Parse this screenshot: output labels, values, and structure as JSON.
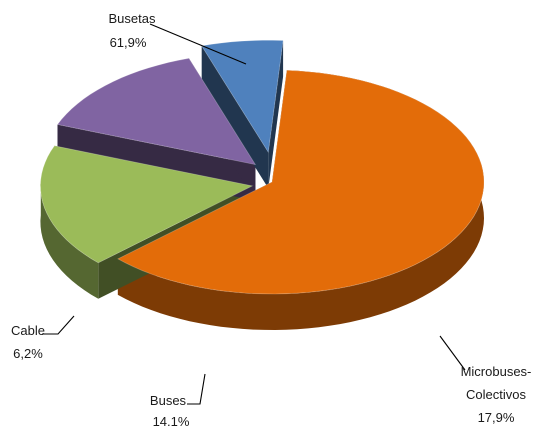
{
  "chart_data": {
    "type": "pie",
    "style": "3d-exploded",
    "legend": "none",
    "slices": [
      {
        "name": "Busetas",
        "value": 61.9,
        "label": "61,9%",
        "color": "#E36C09"
      },
      {
        "name": "Microbuses-Colectivos",
        "name_lines": [
          "Microbuses-",
          "Colectivos"
        ],
        "value": 17.9,
        "label": "17,9%",
        "color": "#9BBB59"
      },
      {
        "name": "Buses",
        "value": 14.1,
        "label": "14.1%",
        "color": "#8064A2"
      },
      {
        "name": "Cable",
        "value": 6.2,
        "label": "6,2%",
        "color": "#4F81BD"
      }
    ]
  }
}
